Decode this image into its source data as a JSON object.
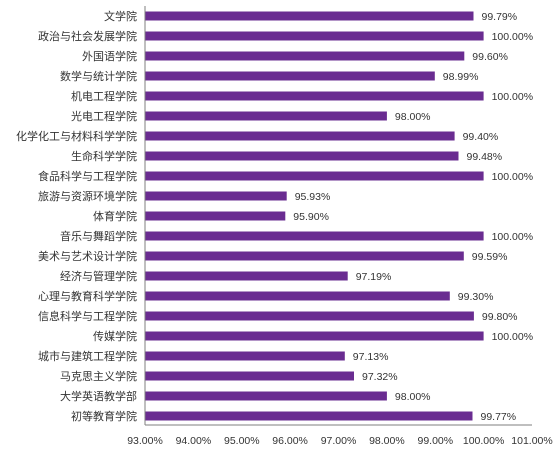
{
  "chart_data": {
    "type": "bar",
    "orientation": "horizontal",
    "categories": [
      "文学院",
      "政治与社会发展学院",
      "外国语学院",
      "数学与统计学院",
      "机电工程学院",
      "光电工程学院",
      "化学化工与材料科学学院",
      "生命科学学院",
      "食品科学与工程学院",
      "旅游与资源环境学院",
      "体育学院",
      "音乐与舞蹈学院",
      "美术与艺术设计学院",
      "经济与管理学院",
      "心理与教育科学学院",
      "信息科学与工程学院",
      "传媒学院",
      "城市与建筑工程学院",
      "马克思主义学院",
      "大学英语教学部",
      "初等教育学院"
    ],
    "values": [
      99.79,
      100.0,
      99.6,
      98.99,
      100.0,
      98.0,
      99.4,
      99.48,
      100.0,
      95.93,
      95.9,
      100.0,
      99.59,
      97.19,
      99.3,
      99.8,
      100.0,
      97.13,
      97.32,
      98.0,
      99.77
    ],
    "value_labels": [
      "99.79%",
      "100.00%",
      "99.60%",
      "98.99%",
      "100.00%",
      "98.00%",
      "99.40%",
      "99.48%",
      "100.00%",
      "95.93%",
      "95.90%",
      "100.00%",
      "99.59%",
      "97.19%",
      "99.30%",
      "99.80%",
      "100.00%",
      "97.13%",
      "97.32%",
      "98.00%",
      "99.77%"
    ],
    "xlim": [
      93.0,
      101.0
    ],
    "x_ticks": [
      93,
      94,
      95,
      96,
      97,
      98,
      99,
      100,
      101
    ],
    "x_tick_labels": [
      "93.00%",
      "94.00%",
      "95.00%",
      "96.00%",
      "97.00%",
      "98.00%",
      "99.00%",
      "100.00%",
      "101.00%"
    ],
    "grid": false,
    "legend": "none",
    "bar_color": "#6a2c91",
    "axis_color": "#7f7f7f"
  }
}
